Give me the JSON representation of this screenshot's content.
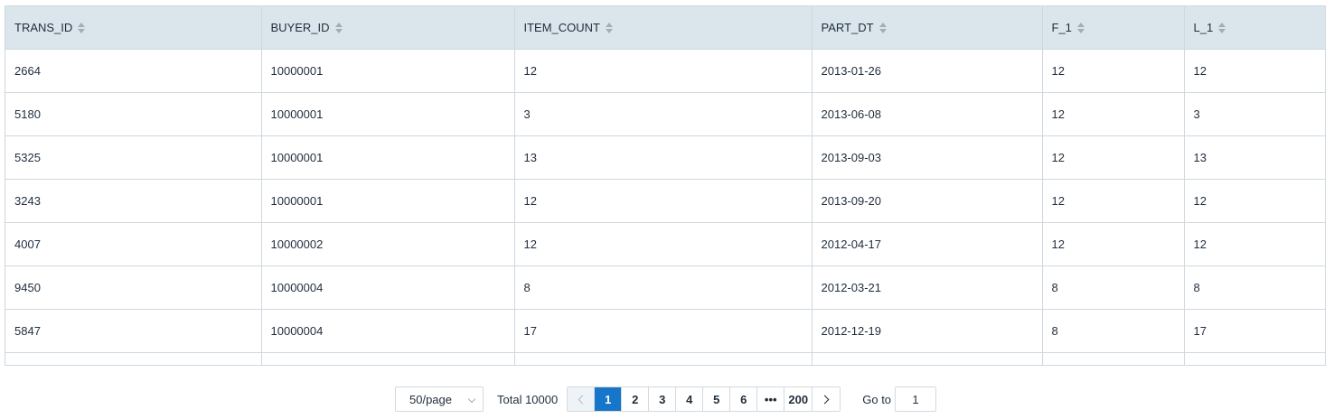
{
  "table": {
    "columns": [
      "TRANS_ID",
      "BUYER_ID",
      "ITEM_COUNT",
      "PART_DT",
      "F_1",
      "L_1"
    ],
    "rows": [
      [
        "2664",
        "10000001",
        "12",
        "2013-01-26",
        "12",
        "12"
      ],
      [
        "5180",
        "10000001",
        "3",
        "2013-06-08",
        "12",
        "3"
      ],
      [
        "5325",
        "10000001",
        "13",
        "2013-09-03",
        "12",
        "13"
      ],
      [
        "3243",
        "10000001",
        "12",
        "2013-09-20",
        "12",
        "12"
      ],
      [
        "4007",
        "10000002",
        "12",
        "2012-04-17",
        "12",
        "12"
      ],
      [
        "9450",
        "10000004",
        "8",
        "2012-03-21",
        "8",
        "8"
      ],
      [
        "5847",
        "10000004",
        "17",
        "2012-12-19",
        "8",
        "17"
      ]
    ]
  },
  "pagination": {
    "page_size": "50/page",
    "total": "Total 10000",
    "pages": [
      "1",
      "2",
      "3",
      "4",
      "5",
      "6",
      "•••",
      "200"
    ],
    "current_page": "1",
    "goto_label": "Go to",
    "goto_value": "1"
  },
  "colors": {
    "header_bg": "#dae6ec",
    "border": "#cfd8de",
    "active_page": "#1676c9",
    "text": "#1f2d3d"
  }
}
